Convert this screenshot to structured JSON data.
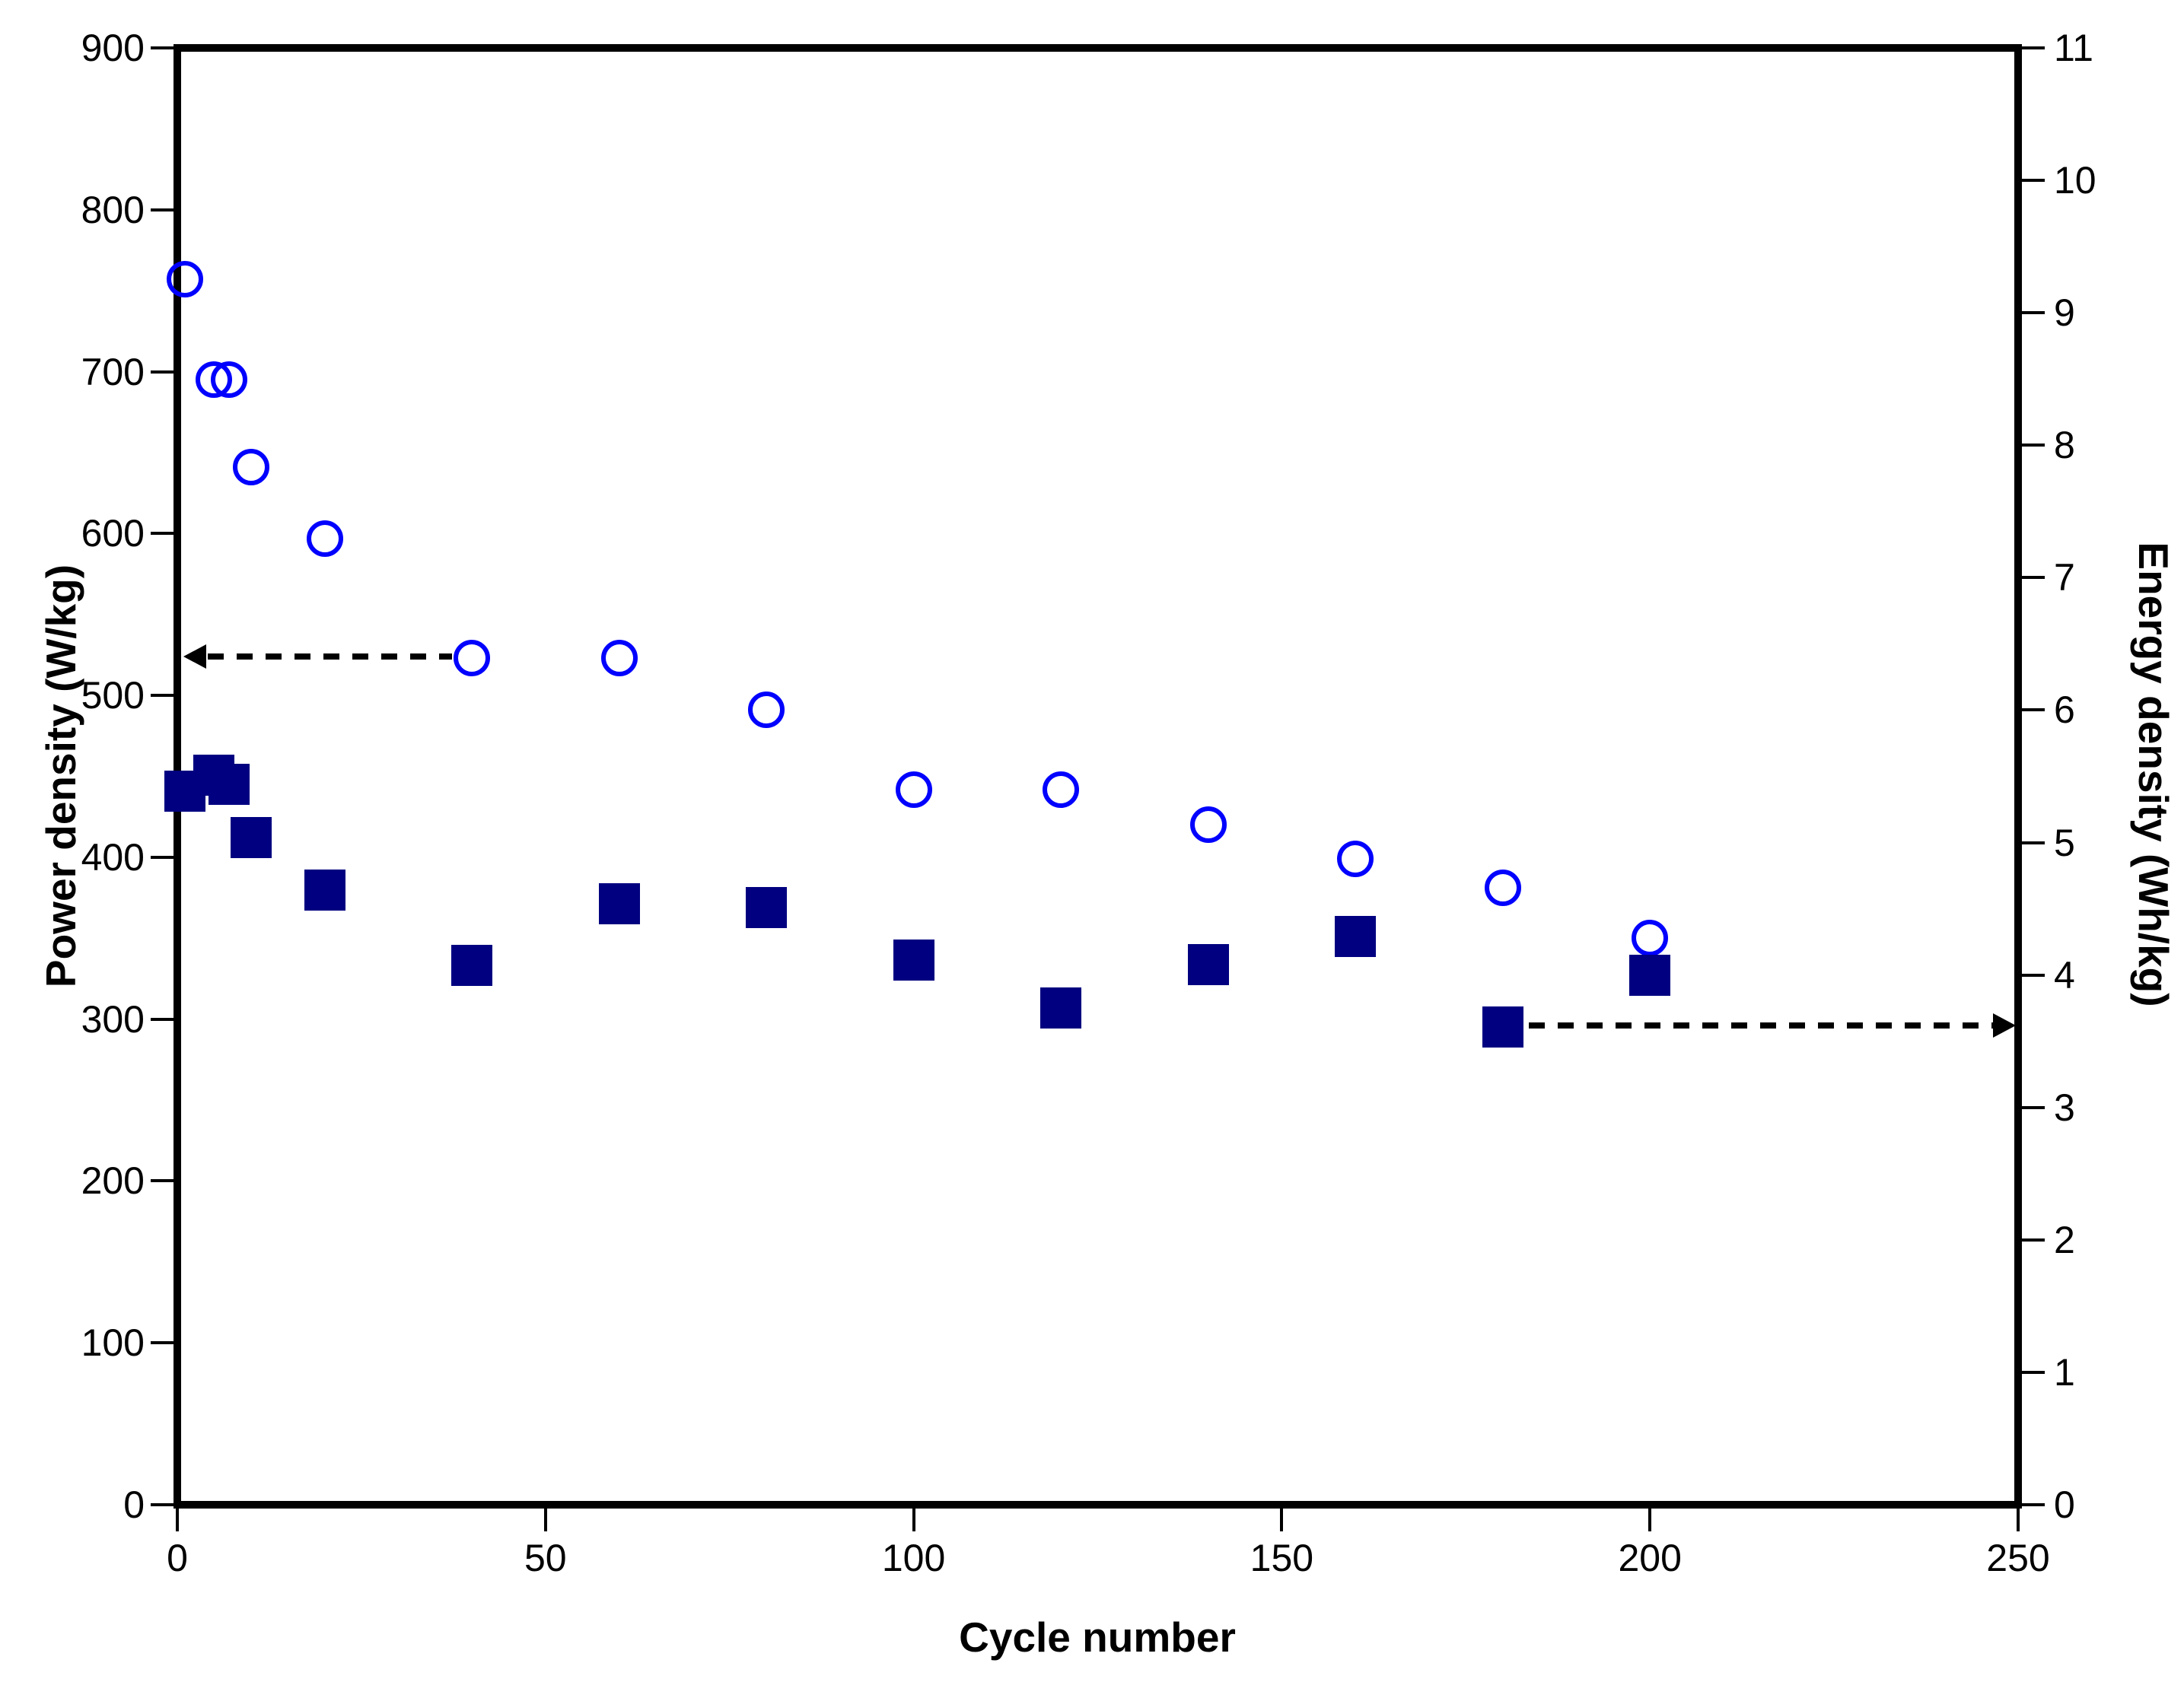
{
  "chart_data": {
    "type": "scatter",
    "title": "",
    "xlabel": "Cycle number",
    "ylabel_left": "Power density (W/kg)",
    "ylabel_right": "Energy density (Wh/kg)",
    "grid": false,
    "legend": false,
    "background_color": "#ffffff",
    "axis_color": "#000000",
    "x_axis": {
      "min": 0,
      "max": 250,
      "ticks": [
        0,
        50,
        100,
        150,
        200,
        250
      ]
    },
    "y_axis_left": {
      "min": 0,
      "max": 900,
      "ticks": [
        0,
        100,
        200,
        300,
        400,
        500,
        600,
        700,
        800,
        900
      ]
    },
    "y_axis_right": {
      "min": 0,
      "max": 11,
      "ticks": [
        0,
        1,
        2,
        3,
        4,
        5,
        6,
        7,
        8,
        9,
        10,
        11
      ]
    },
    "series": [
      {
        "name": "Power density",
        "axis": "left",
        "marker": "open-circle",
        "color": "#0000ff",
        "x": [
          1,
          5,
          7,
          10,
          20,
          40,
          60,
          80,
          100,
          120,
          140,
          160,
          180,
          200
        ],
        "y": [
          757,
          695,
          695,
          641,
          597,
          523,
          523,
          491,
          442,
          442,
          420,
          399,
          381,
          350
        ]
      },
      {
        "name": "Energy density",
        "axis": "right",
        "marker": "filled-square",
        "color": "#000080",
        "x": [
          1,
          5,
          7,
          10,
          20,
          40,
          60,
          80,
          100,
          120,
          140,
          160,
          180,
          200
        ],
        "y": [
          5.39,
          5.51,
          5.44,
          5.04,
          4.64,
          4.07,
          4.54,
          4.51,
          4.11,
          3.75,
          4.08,
          4.29,
          3.61,
          4.0
        ]
      }
    ],
    "annotations": [
      {
        "id": "power-arrow",
        "style": "dashed",
        "axis": "left",
        "y": 524,
        "x_start": 37.3,
        "x_end": 1.0,
        "direction": "left"
      },
      {
        "id": "energy-arrow",
        "style": "dashed",
        "axis": "right",
        "y": 3.62,
        "x_start": 183.5,
        "x_end": 249.5,
        "direction": "right"
      }
    ]
  }
}
